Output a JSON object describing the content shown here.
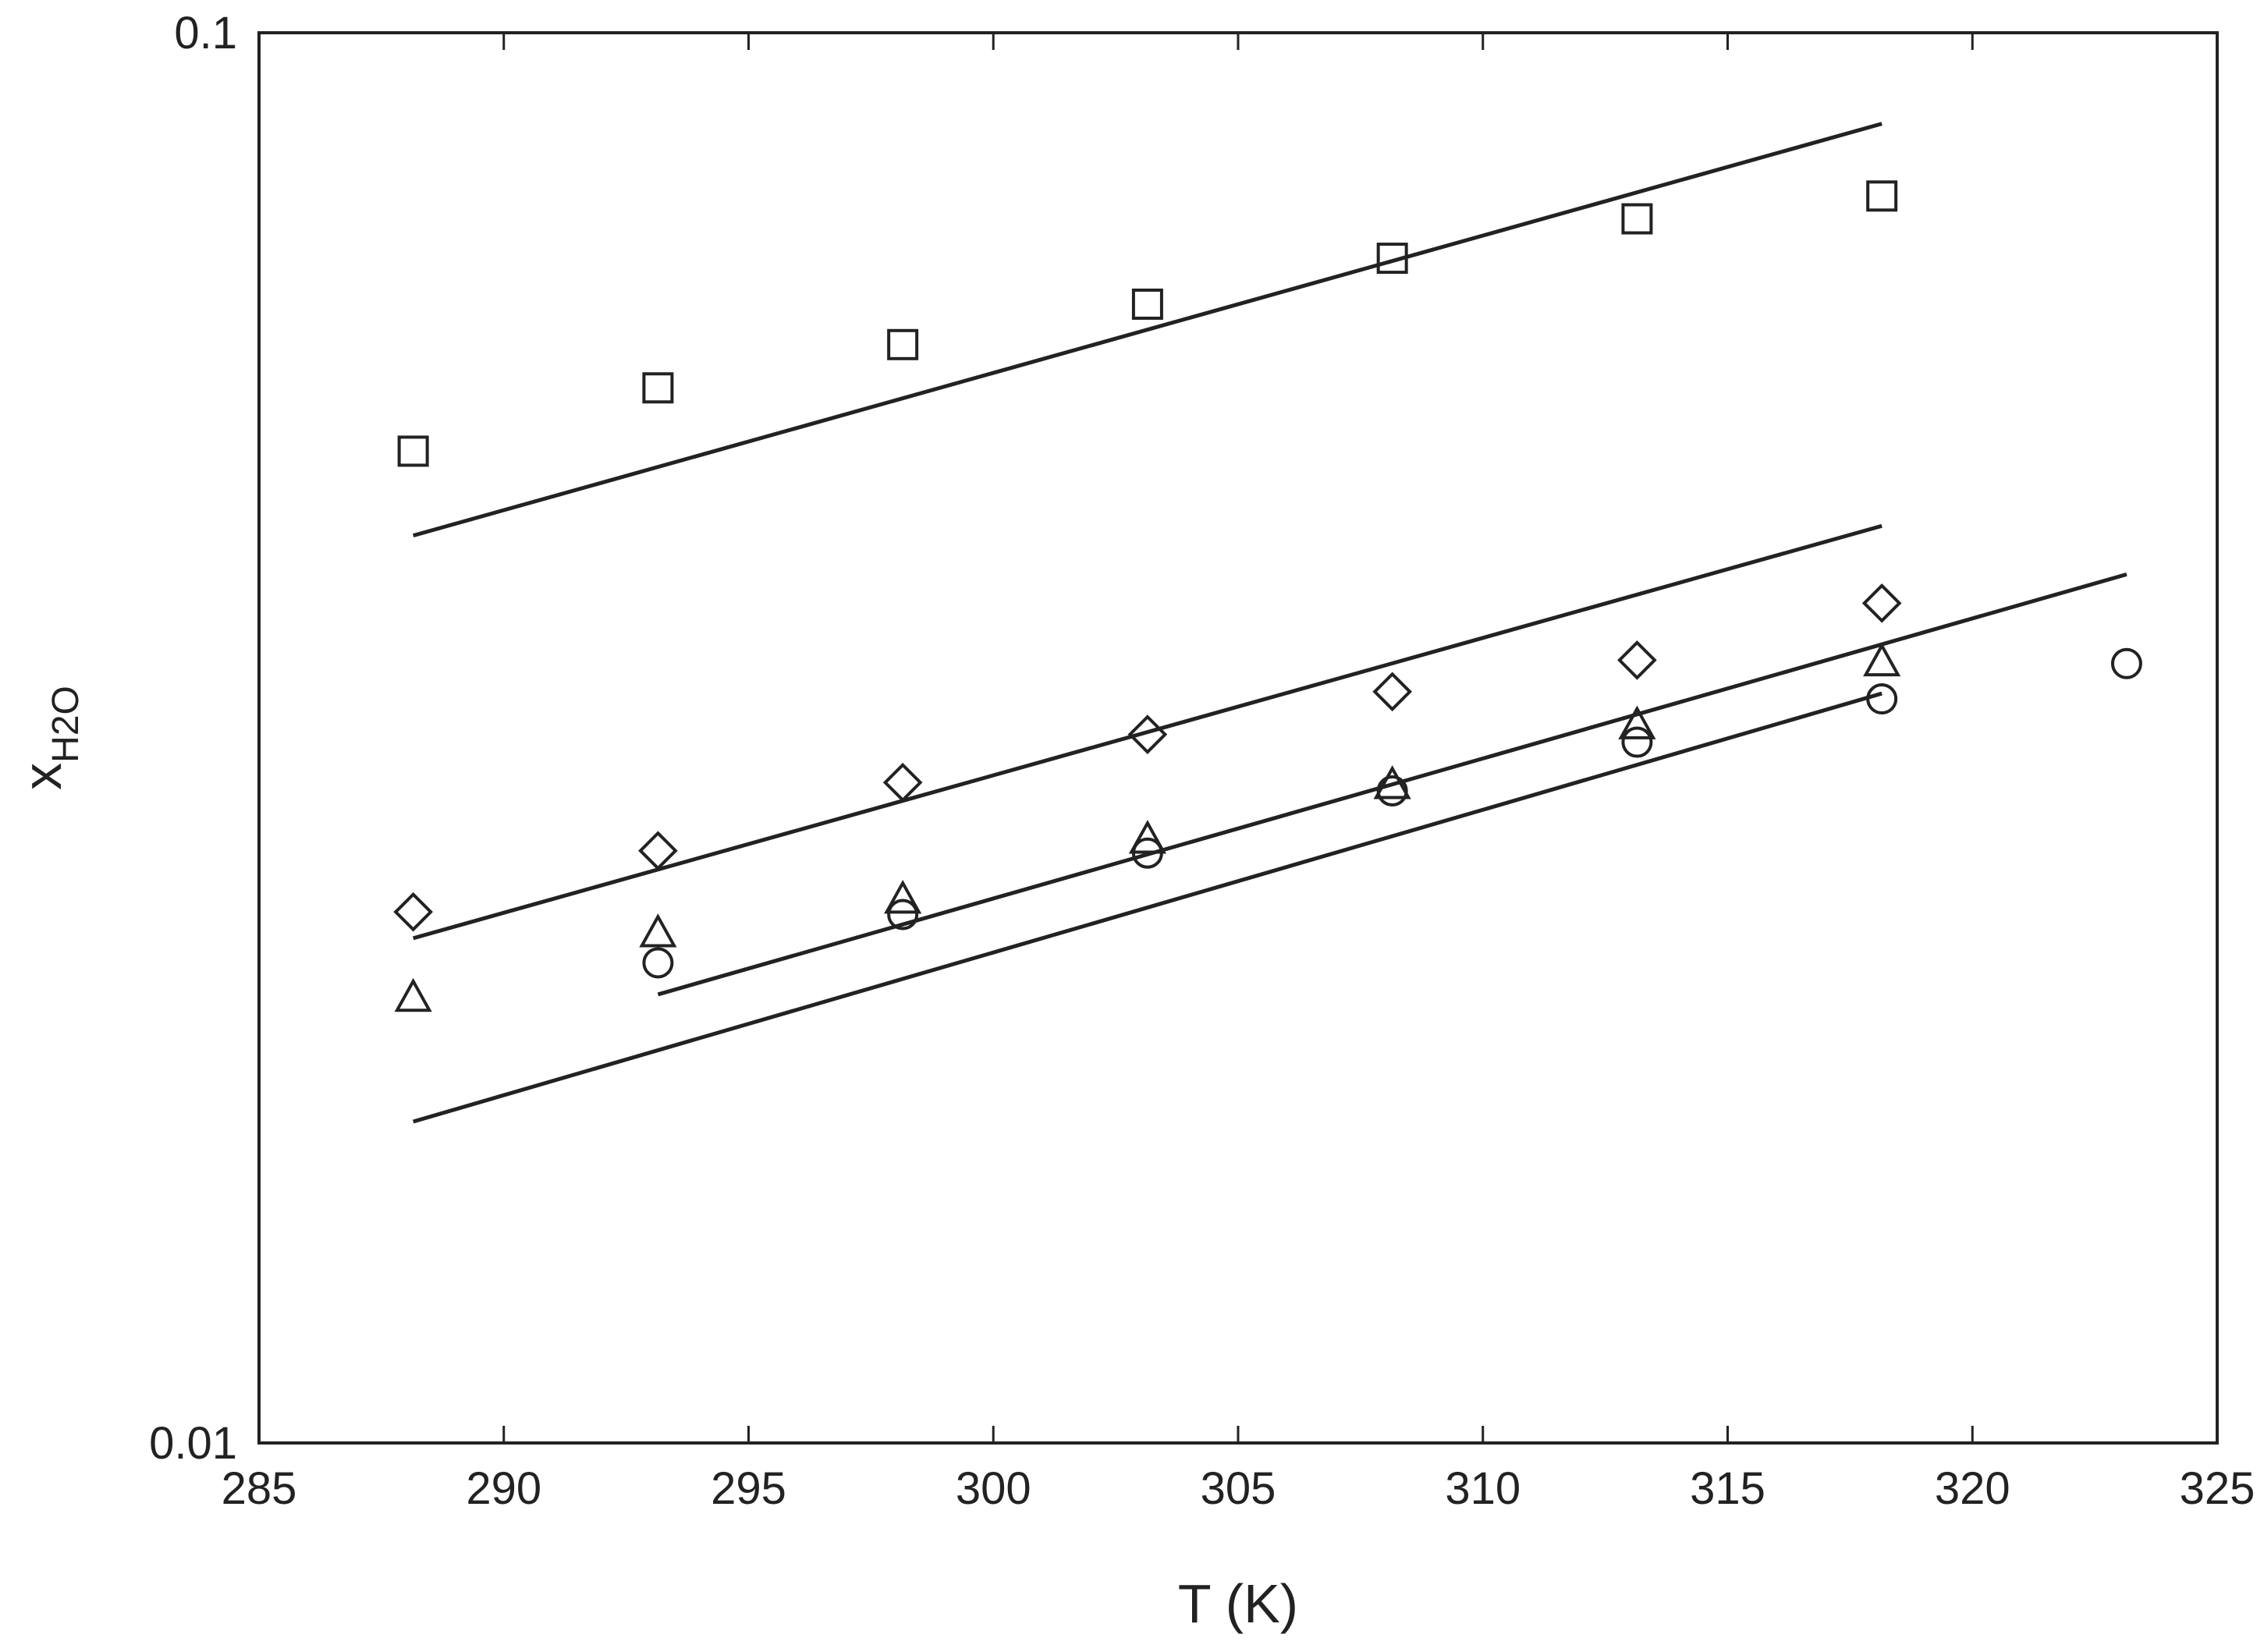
{
  "chart_data": {
    "type": "scatter",
    "title": "",
    "xlabel": "T (K)",
    "ylabel": {
      "main": "x",
      "sub": "H2O"
    },
    "x_scale": "linear",
    "y_scale": "log",
    "xlim": [
      285,
      325
    ],
    "ylim": [
      0.01,
      0.1
    ],
    "x_ticks": [
      285,
      290,
      295,
      300,
      305,
      310,
      315,
      320,
      325
    ],
    "x_tick_labels": [
      "285",
      "290",
      "295",
      "300",
      "305",
      "310",
      "315",
      "320",
      "325"
    ],
    "y_ticks": [
      0.01,
      0.1
    ],
    "y_tick_labels": [
      "0.01",
      "0.1"
    ],
    "grid": false,
    "legend": "none",
    "color": "#222222",
    "series": [
      {
        "marker": "square",
        "points": [
          {
            "x": 288.15,
            "y": 0.0505
          },
          {
            "x": 293.15,
            "y": 0.056
          },
          {
            "x": 298.15,
            "y": 0.0601
          },
          {
            "x": 303.15,
            "y": 0.0642
          },
          {
            "x": 308.15,
            "y": 0.0692
          },
          {
            "x": 313.15,
            "y": 0.0738
          },
          {
            "x": 318.15,
            "y": 0.0766
          }
        ],
        "fit": [
          {
            "x": 288.15,
            "y": 0.044
          },
          {
            "x": 318.15,
            "y": 0.0862
          }
        ]
      },
      {
        "marker": "diamond",
        "points": [
          {
            "x": 288.15,
            "y": 0.0238
          },
          {
            "x": 293.15,
            "y": 0.0263
          },
          {
            "x": 298.15,
            "y": 0.0294
          },
          {
            "x": 303.15,
            "y": 0.0318
          },
          {
            "x": 308.15,
            "y": 0.0341
          },
          {
            "x": 313.15,
            "y": 0.0359
          },
          {
            "x": 318.15,
            "y": 0.0394
          }
        ],
        "fit": [
          {
            "x": 288.15,
            "y": 0.0228
          },
          {
            "x": 318.15,
            "y": 0.0447
          }
        ]
      },
      {
        "marker": "triangle",
        "points": [
          {
            "x": 288.15,
            "y": 0.0207
          },
          {
            "x": 293.15,
            "y": 0.023
          },
          {
            "x": 298.15,
            "y": 0.0243
          },
          {
            "x": 303.15,
            "y": 0.0268
          },
          {
            "x": 308.15,
            "y": 0.0293
          },
          {
            "x": 313.15,
            "y": 0.0323
          },
          {
            "x": 318.15,
            "y": 0.0358
          }
        ],
        "fit": [
          {
            "x": 293.15,
            "y": 0.0208
          },
          {
            "x": 323.15,
            "y": 0.0413
          }
        ]
      },
      {
        "marker": "circle",
        "points": [
          {
            "x": 293.15,
            "y": 0.0219
          },
          {
            "x": 298.15,
            "y": 0.0237
          },
          {
            "x": 303.15,
            "y": 0.0262
          },
          {
            "x": 308.15,
            "y": 0.029
          },
          {
            "x": 313.15,
            "y": 0.0314
          },
          {
            "x": 318.15,
            "y": 0.0337
          },
          {
            "x": 323.15,
            "y": 0.0357
          }
        ],
        "fit": [
          {
            "x": 288.15,
            "y": 0.0169
          },
          {
            "x": 318.15,
            "y": 0.034
          }
        ]
      }
    ]
  }
}
